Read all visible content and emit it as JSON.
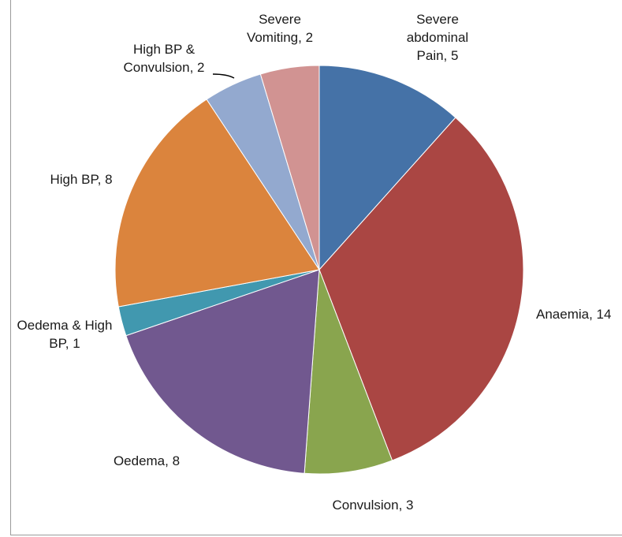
{
  "chart_data": {
    "type": "pie",
    "title": "",
    "start_angle_deg": 0,
    "direction": "clockwise",
    "slices": [
      {
        "label": "Severe abdominal Pain, 5",
        "category": "Severe abdominal Pain",
        "value": 5,
        "color": "#4572A7"
      },
      {
        "label": "Anaemia, 14",
        "category": "Anaemia",
        "value": 14,
        "color": "#AA4643"
      },
      {
        "label": "Convulsion, 3",
        "category": "Convulsion",
        "value": 3,
        "color": "#89A54E"
      },
      {
        "label": "Oedema, 8",
        "category": "Oedema",
        "value": 8,
        "color": "#71588F"
      },
      {
        "label": "Oedema & High BP, 1",
        "category": "Oedema & High BP",
        "value": 1,
        "color": "#4198AF"
      },
      {
        "label": "High BP, 8",
        "category": "High BP",
        "value": 8,
        "color": "#DB843D"
      },
      {
        "label": "High BP & Convulsion, 2",
        "category": "High BP & Convulsion",
        "value": 2,
        "color": "#93A9CF"
      },
      {
        "label": "Severe Vomiting, 2",
        "category": "Severe Vomiting",
        "value": 2,
        "color": "#D19392"
      }
    ],
    "data_labels": [
      {
        "lines": [
          "Severe",
          "abdominal",
          "Pain, 5"
        ]
      },
      {
        "lines": [
          "Anaemia, 14"
        ]
      },
      {
        "lines": [
          "Convulsion, 3"
        ]
      },
      {
        "lines": [
          "Oedema, 8"
        ]
      },
      {
        "lines": [
          "Oedema & High",
          "BP, 1"
        ]
      },
      {
        "lines": [
          "High BP, 8"
        ]
      },
      {
        "lines": [
          "High BP &",
          "Convulsion, 2"
        ]
      },
      {
        "lines": [
          "Severe",
          "Vomiting, 2"
        ]
      }
    ],
    "legend": "none"
  }
}
